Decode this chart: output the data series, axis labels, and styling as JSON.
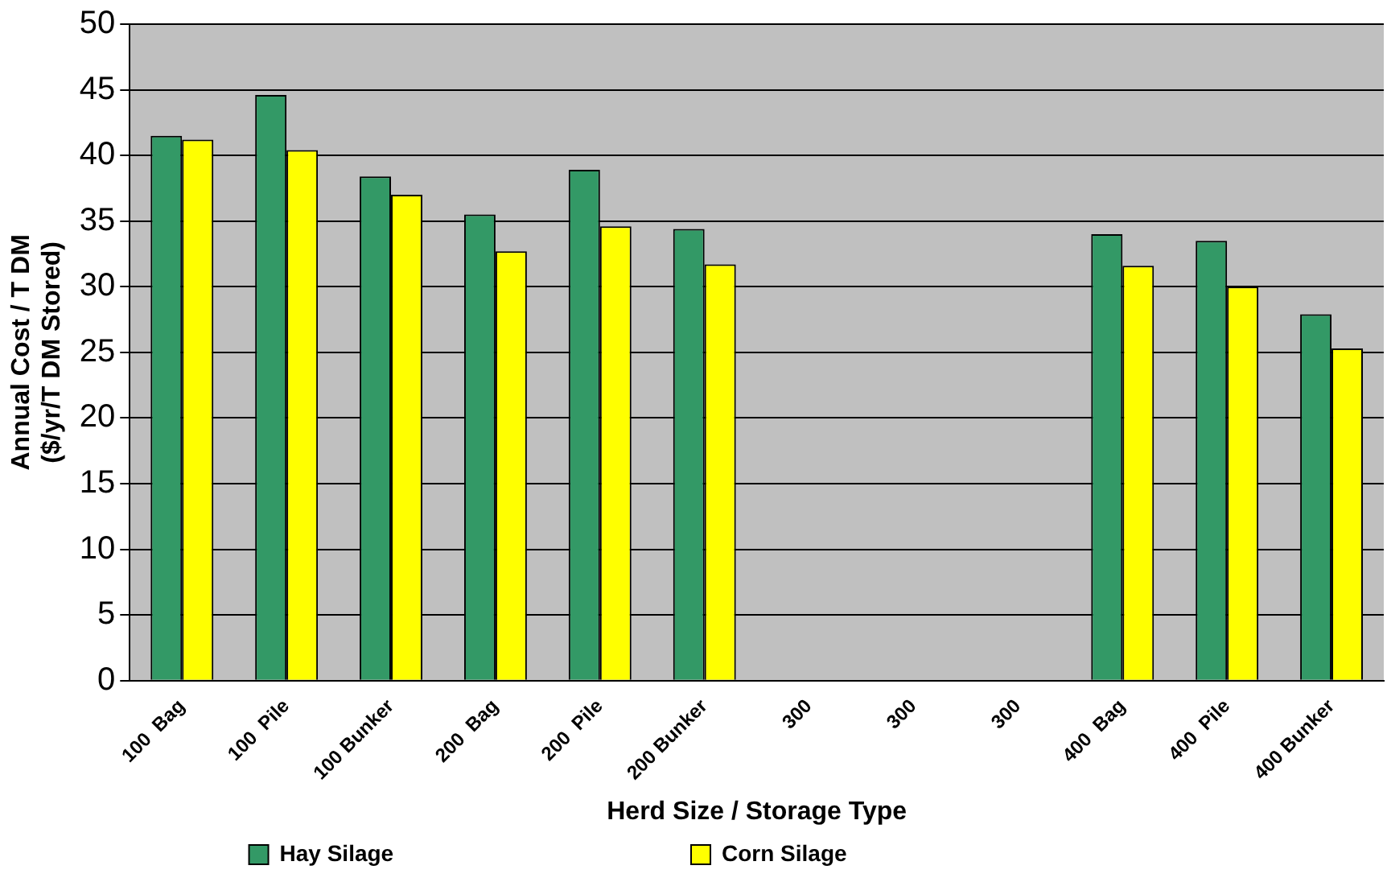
{
  "chart_data": {
    "type": "bar",
    "xlabel": "Herd Size / Storage Type",
    "ylabel": "Annual Cost / T DM\n($/yr/T DM Stored)",
    "categories": [
      "100  Bag",
      "100  Pile",
      "100 Bunker",
      "200  Bag",
      "200  Pile",
      "200 Bunker",
      "300",
      "300",
      "300",
      "400  Bag",
      "400  Pile",
      "400 Bunker"
    ],
    "series": [
      {
        "name": "Hay Silage",
        "color": "#339966",
        "values": [
          41.5,
          44.6,
          38.4,
          35.5,
          38.9,
          34.4,
          null,
          null,
          null,
          34.0,
          33.5,
          27.9
        ]
      },
      {
        "name": "Corn Silage",
        "color": "#ffff00",
        "values": [
          41.2,
          40.4,
          37.0,
          32.7,
          34.6,
          31.7,
          null,
          null,
          null,
          31.6,
          30.0,
          25.3
        ]
      }
    ],
    "ylim": [
      0,
      50
    ],
    "yticks": [
      0,
      5,
      10,
      15,
      20,
      25,
      30,
      35,
      40,
      45,
      50
    ],
    "grid": "y",
    "legend": "bottom"
  }
}
